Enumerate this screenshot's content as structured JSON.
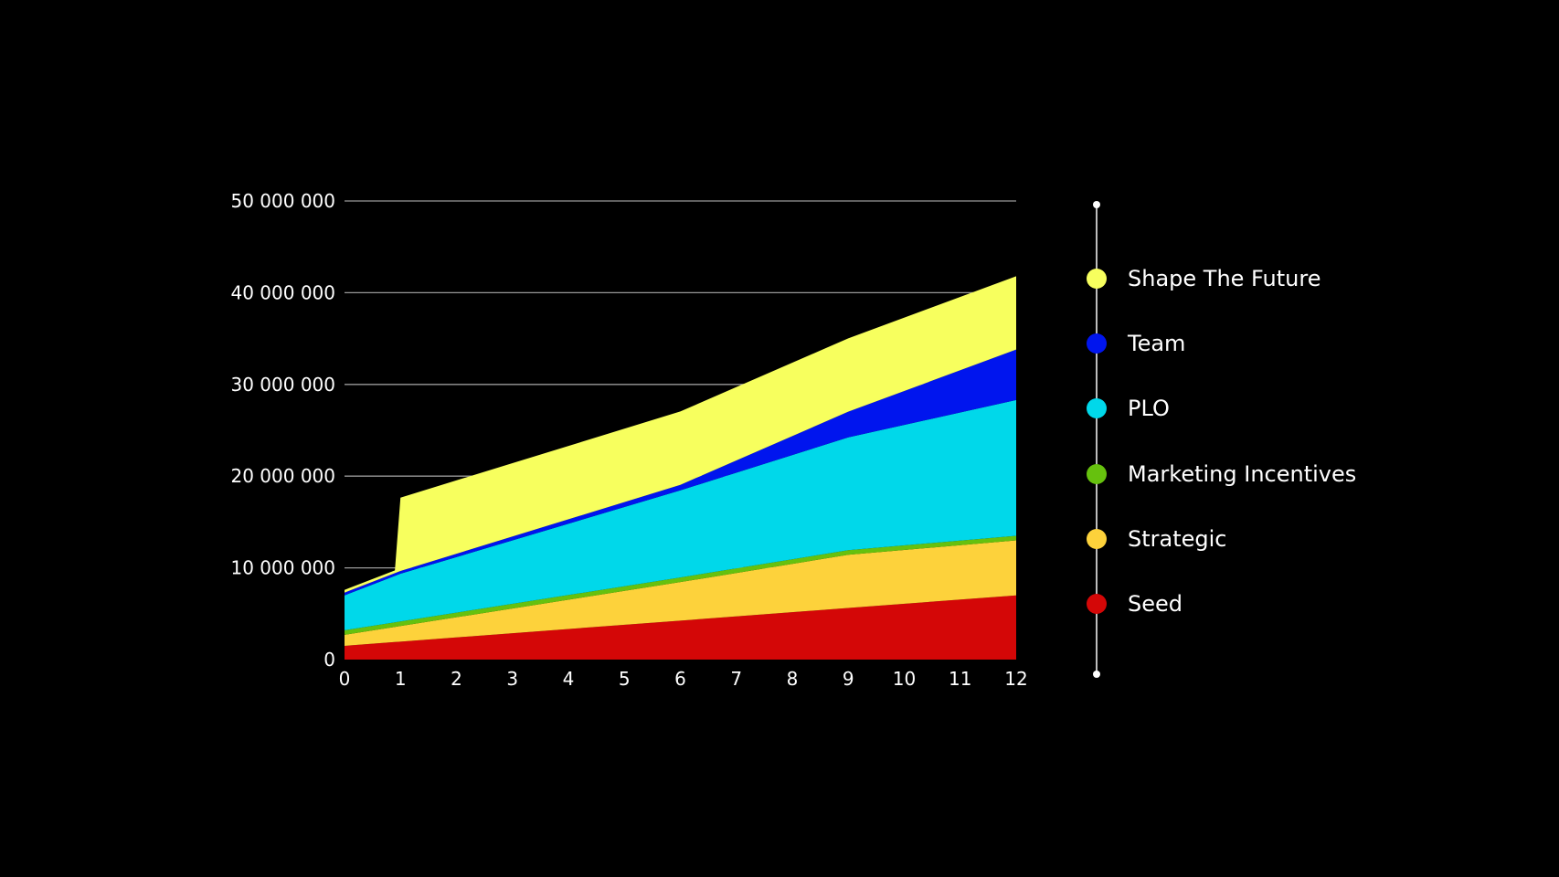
{
  "chart_data": {
    "type": "area",
    "stacked": true,
    "x": [
      0,
      1,
      2,
      3,
      4,
      5,
      6,
      7,
      8,
      9,
      10,
      11,
      12
    ],
    "y_ticks": [
      "0",
      "10 000 000",
      "20 000 000",
      "30 000 000",
      "40 000 000",
      "50 000 000"
    ],
    "y_tick_values": [
      0,
      10000000,
      20000000,
      30000000,
      40000000,
      50000000
    ],
    "ylim": [
      0,
      50000000
    ],
    "xlim": [
      0,
      12
    ],
    "grid": true,
    "legend_position": "right",
    "series": [
      {
        "name": "Seed",
        "color": "#d40707",
        "points": [
          [
            0,
            1500000
          ],
          [
            12,
            7000000
          ]
        ]
      },
      {
        "name": "Strategic",
        "color": "#fdd23b",
        "points": [
          [
            0,
            1200000
          ],
          [
            6,
            4200000
          ],
          [
            9,
            5800000
          ],
          [
            12,
            6000000
          ]
        ]
      },
      {
        "name": "Marketing Incentives",
        "color": "#66c10e",
        "points": [
          [
            0,
            500000
          ],
          [
            12,
            500000
          ]
        ]
      },
      {
        "name": "PLO",
        "color": "#00d8ea",
        "points": [
          [
            0,
            3800000
          ],
          [
            1,
            5200000
          ],
          [
            6,
            9500000
          ],
          [
            9,
            12300000
          ],
          [
            12,
            14800000
          ]
        ]
      },
      {
        "name": "Team",
        "color": "#0015ee",
        "points": [
          [
            0,
            300000
          ],
          [
            1,
            300000
          ],
          [
            6,
            600000
          ],
          [
            9,
            2800000
          ],
          [
            12,
            5500000
          ]
        ]
      },
      {
        "name": "Shape The Future",
        "color": "#f7ff5e",
        "points": [
          [
            0,
            300000
          ],
          [
            0.9,
            300000
          ],
          [
            1,
            8000000
          ],
          [
            6,
            8000000
          ],
          [
            9,
            8000000
          ],
          [
            12,
            8000000
          ]
        ]
      }
    ]
  },
  "legend": {
    "items": [
      {
        "label": "Shape The Future",
        "color": "#f7ff5e"
      },
      {
        "label": "Team",
        "color": "#0015ee"
      },
      {
        "label": "PLO",
        "color": "#00d8ea"
      },
      {
        "label": "Marketing Incentives",
        "color": "#66c10e"
      },
      {
        "label": "Strategic",
        "color": "#fdd23b"
      },
      {
        "label": "Seed",
        "color": "#d40707"
      }
    ]
  }
}
